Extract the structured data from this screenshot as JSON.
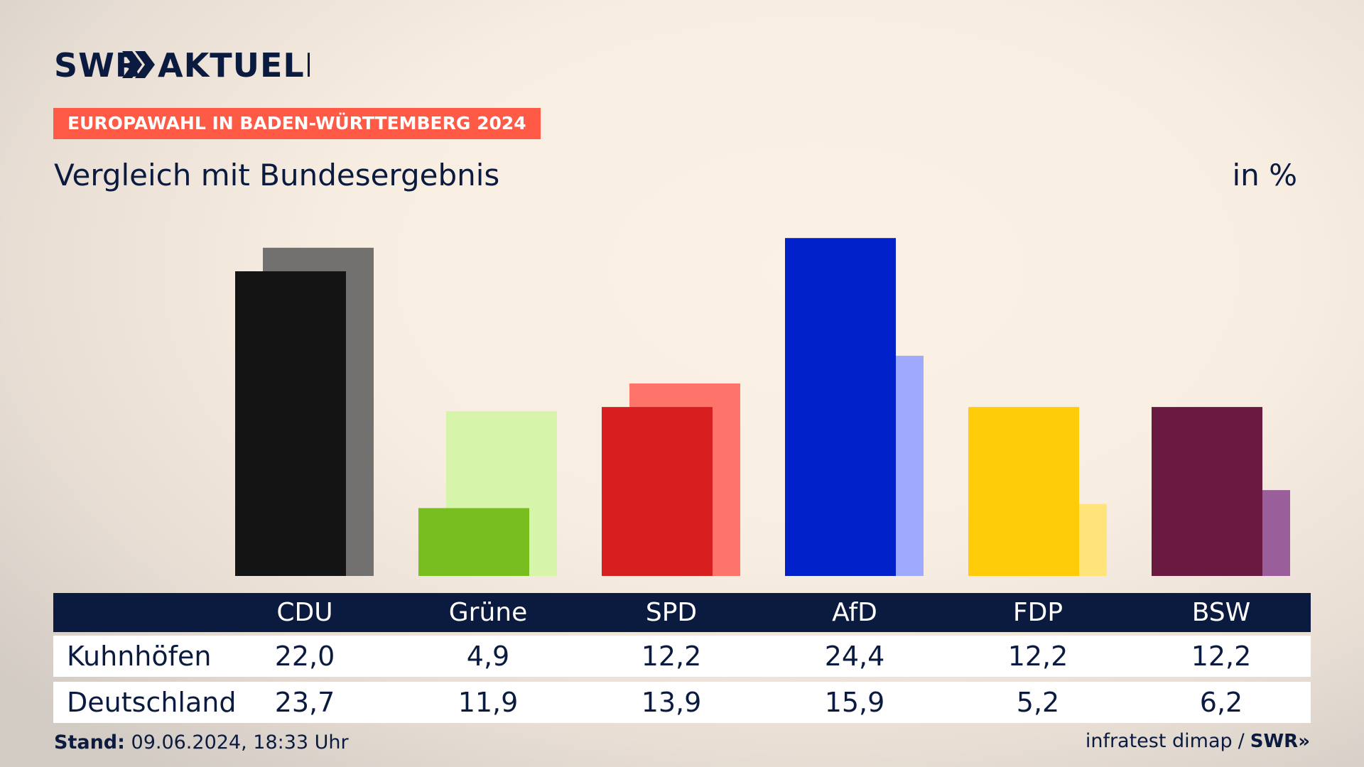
{
  "brand": {
    "logo_text": "SWR",
    "logo_suffix": "AKTUELL",
    "footer_logo": "SWR"
  },
  "header": {
    "ribbon": "EUROPAWAHL IN BADEN-WÜRTTEMBERG 2024",
    "subtitle": "Vergleich mit Bundesergebnis",
    "unit": "in %"
  },
  "table": {
    "row1_label": "Kuhnhöfen",
    "row2_label": "Deutschland"
  },
  "footer": {
    "stand_label": "Stand:",
    "stand_value": "09.06.2024, 18:33 Uhr",
    "source": "infratest dimap",
    "separator": "/"
  },
  "colors": {
    "navy": "#0b1b3f",
    "ribbon": "#ff5a46"
  },
  "chart_data": {
    "type": "bar",
    "categories": [
      "CDU",
      "Grüne",
      "SPD",
      "AfD",
      "FDP",
      "BSW"
    ],
    "series": [
      {
        "name": "Kuhnhöfen",
        "values": [
          22.0,
          4.9,
          12.2,
          24.4,
          12.2,
          12.2
        ],
        "colors": [
          "#141414",
          "#78be1e",
          "#d71f1f",
          "#0021c9",
          "#ffcc0a",
          "#6a1a40"
        ]
      },
      {
        "name": "Deutschland",
        "values": [
          23.7,
          11.9,
          13.9,
          15.9,
          5.2,
          6.2
        ],
        "colors": [
          "#737170",
          "#d7f5aa",
          "#ff746a",
          "#9faaff",
          "#ffe47a",
          "#9a5f9b"
        ]
      }
    ],
    "display": {
      "Kuhnhöfen": [
        "22,0",
        "4,9",
        "12,2",
        "24,4",
        "12,2",
        "12,2"
      ],
      "Deutschland": [
        "23,7",
        "11,9",
        "13,9",
        "15,9",
        "5,2",
        "6,2"
      ]
    },
    "ylim": [
      0,
      25
    ],
    "grid": false,
    "legend": "table-below"
  }
}
